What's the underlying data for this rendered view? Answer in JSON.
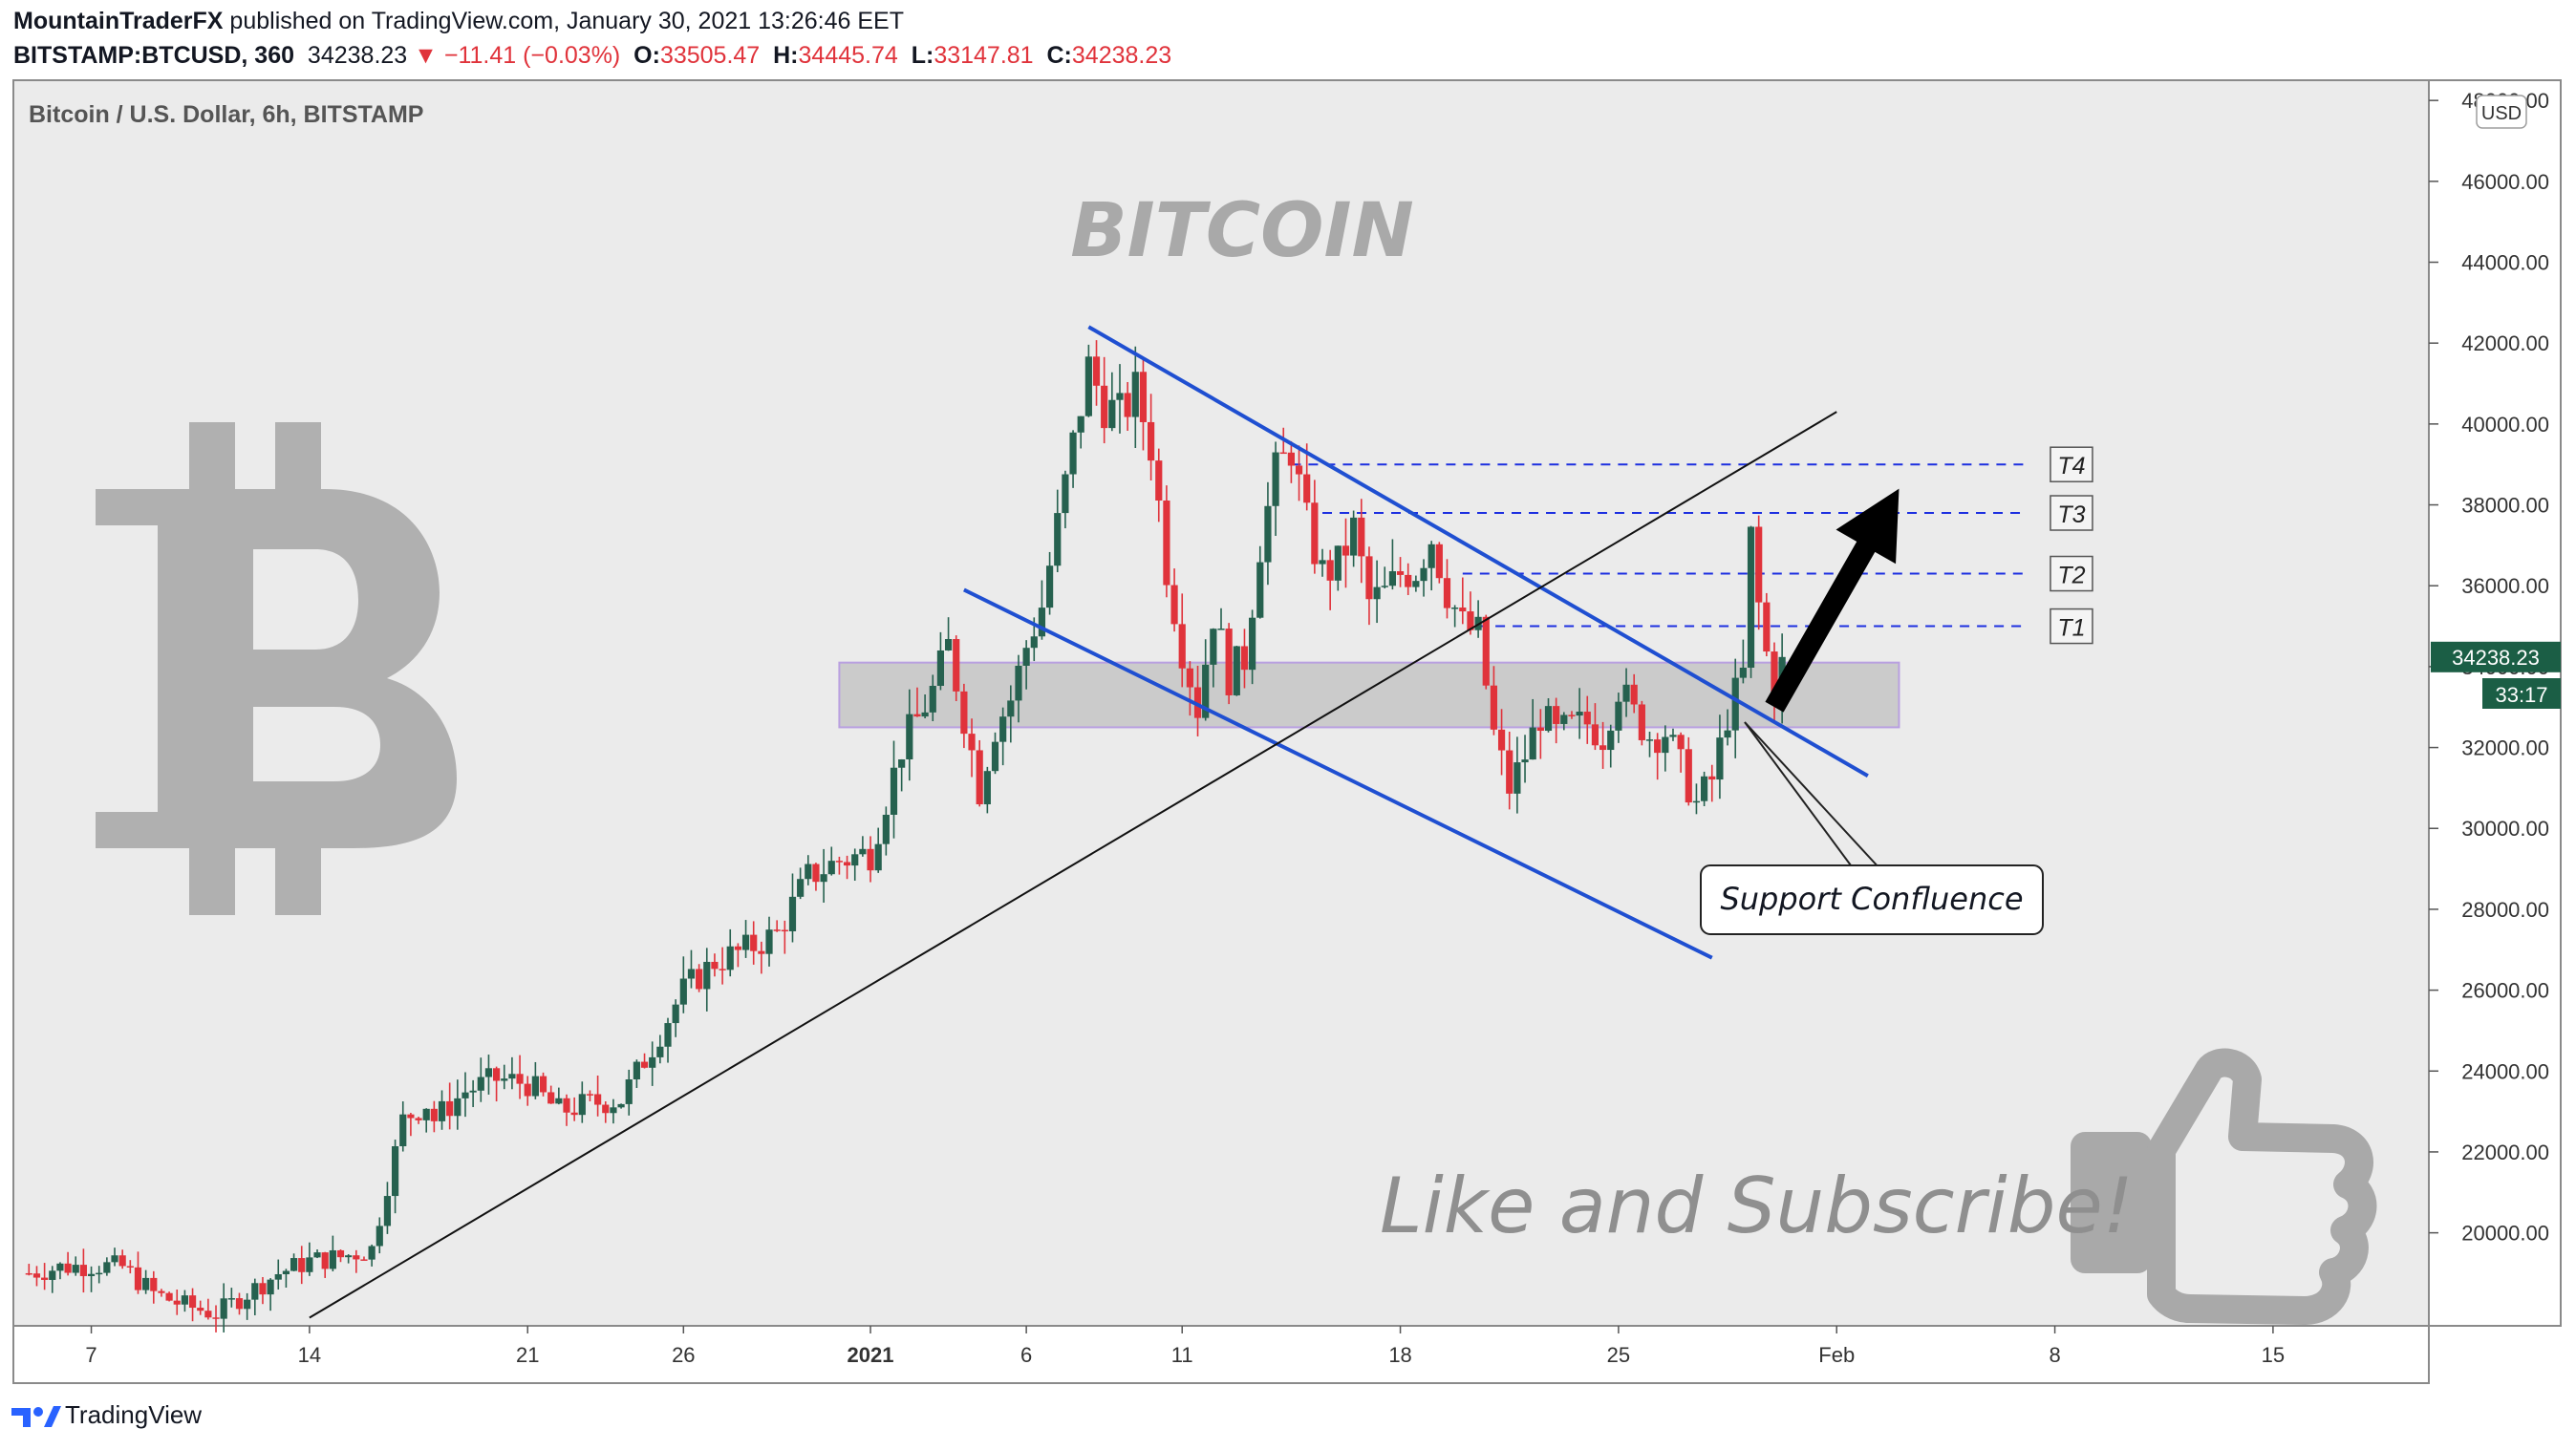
{
  "header": {
    "author": "MountainTraderFX",
    "published": "published on TradingView.com, January 30, 2021 13:26:46 EET",
    "symbol": "BITSTAMP:BTCUSD, 360",
    "last": "34238.23",
    "change": "−11.41 (−0.03%)",
    "o_label": "O:",
    "o_value": "33505.47",
    "h_label": "H:",
    "h_value": "34445.74",
    "l_label": "L:",
    "l_value": "33147.81",
    "c_label": "C:",
    "c_value": "34238.23"
  },
  "legend_title": "Bitcoin / U.S. Dollar, 6h, BITSTAMP",
  "currency": "USD",
  "watermark_title": "BITCOIN",
  "subscribe_text": "Like and Subscribe!",
  "callout": "Support Confluence",
  "price_badge": {
    "price": "34238.23",
    "countdown": "33:17"
  },
  "footer": {
    "brand": "TradingView"
  },
  "colors": {
    "up": "#26614f",
    "down": "#e0333b",
    "channel": "#1f4fd1",
    "target": "#1c2fe0",
    "badge": "#1b5e45",
    "zone": "#c8c8c8",
    "zone_border": "#b9a0e0",
    "background": "#ebebeb"
  },
  "icons": [
    "bitcoin-logo-icon",
    "thumbs-up-icon",
    "tradingview-logo-icon",
    "down-triangle-icon"
  ],
  "chart_data": {
    "type": "candlestick",
    "timeframe": "6h",
    "ylim": [
      17700,
      48500
    ],
    "y_ticks": [
      20000,
      22000,
      24000,
      26000,
      28000,
      30000,
      32000,
      34000,
      36000,
      38000,
      40000,
      42000,
      44000,
      46000,
      48000
    ],
    "y_tick_labels": [
      "20000.00",
      "22000.00",
      "24000.00",
      "26000.00",
      "28000.00",
      "30000.00",
      "32000.00",
      "34000.00",
      "36000.00",
      "38000.00",
      "40000.00",
      "42000.00",
      "44000.00",
      "46000.00",
      "48000.00"
    ],
    "x_range": [
      "2020-12-04T12:00",
      "2021-02-20T00:00"
    ],
    "x_ticks": [
      {
        "date": "2020-12-07",
        "label": "7"
      },
      {
        "date": "2020-12-14",
        "label": "14"
      },
      {
        "date": "2020-12-21",
        "label": "21"
      },
      {
        "date": "2020-12-26",
        "label": "26"
      },
      {
        "date": "2021-01-01",
        "label": "2021"
      },
      {
        "date": "2021-01-06",
        "label": "6"
      },
      {
        "date": "2021-01-11",
        "label": "11"
      },
      {
        "date": "2021-01-18",
        "label": "18"
      },
      {
        "date": "2021-01-25",
        "label": "25"
      },
      {
        "date": "2021-02-01",
        "label": "Feb"
      },
      {
        "date": "2021-02-08",
        "label": "8"
      },
      {
        "date": "2021-02-15",
        "label": "15"
      }
    ],
    "series": [
      {
        "date": "2020-12-05",
        "close": 19000
      },
      {
        "date": "2020-12-06",
        "close": 19150
      },
      {
        "date": "2020-12-07",
        "close": 19200
      },
      {
        "date": "2020-12-08",
        "close": 19150
      },
      {
        "date": "2020-12-09",
        "close": 18500
      },
      {
        "date": "2020-12-10",
        "close": 18200
      },
      {
        "date": "2020-12-11",
        "close": 18000
      },
      {
        "date": "2020-12-12",
        "close": 18500
      },
      {
        "date": "2020-12-13",
        "close": 19000
      },
      {
        "date": "2020-12-14",
        "close": 19300
      },
      {
        "date": "2020-12-15",
        "close": 19400
      },
      {
        "date": "2020-12-16",
        "close": 19600
      },
      {
        "date": "2020-12-17",
        "close": 22800
      },
      {
        "date": "2020-12-17T18:00",
        "close": 23200
      },
      {
        "date": "2020-12-18",
        "close": 22800
      },
      {
        "date": "2020-12-19",
        "close": 23500
      },
      {
        "date": "2020-12-20",
        "close": 23800
      },
      {
        "date": "2020-12-21",
        "close": 23700
      },
      {
        "date": "2020-12-22",
        "close": 23000
      },
      {
        "date": "2020-12-23",
        "close": 23200
      },
      {
        "date": "2020-12-24",
        "close": 23300
      },
      {
        "date": "2020-12-25",
        "close": 24600
      },
      {
        "date": "2020-12-26",
        "close": 26000
      },
      {
        "date": "2020-12-27",
        "close": 26700
      },
      {
        "date": "2020-12-28",
        "close": 27000
      },
      {
        "date": "2020-12-29",
        "close": 27400
      },
      {
        "date": "2020-12-30",
        "close": 28800
      },
      {
        "date": "2020-12-31",
        "close": 29200
      },
      {
        "date": "2021-01-01",
        "close": 29400
      },
      {
        "date": "2021-01-02",
        "close": 32000
      },
      {
        "date": "2021-01-03",
        "close": 33400
      },
      {
        "date": "2021-01-03T12:00",
        "close": 34500
      },
      {
        "date": "2021-01-04",
        "close": 32800
      },
      {
        "date": "2021-01-04T12:00",
        "close": 31000
      },
      {
        "date": "2021-01-05",
        "close": 32500
      },
      {
        "date": "2021-01-05T12:00",
        "close": 33200
      },
      {
        "date": "2021-01-06",
        "close": 34500
      },
      {
        "date": "2021-01-06T12:00",
        "close": 35500
      },
      {
        "date": "2021-01-07",
        "close": 37500
      },
      {
        "date": "2021-01-07T12:00",
        "close": 39500
      },
      {
        "date": "2021-01-08",
        "close": 41400
      },
      {
        "date": "2021-01-08T12:00",
        "close": 40500
      },
      {
        "date": "2021-01-09",
        "close": 40200
      },
      {
        "date": "2021-01-09T12:00",
        "close": 40800
      },
      {
        "date": "2021-01-10",
        "close": 39500
      },
      {
        "date": "2021-01-10T12:00",
        "close": 36500
      },
      {
        "date": "2021-01-11",
        "close": 34500
      },
      {
        "date": "2021-01-11T12:00",
        "close": 33000
      },
      {
        "date": "2021-01-12",
        "close": 35300
      },
      {
        "date": "2021-01-12T12:00",
        "close": 33800
      },
      {
        "date": "2021-01-13",
        "close": 34200
      },
      {
        "date": "2021-01-13T12:00",
        "close": 37000
      },
      {
        "date": "2021-01-14",
        "close": 38800
      },
      {
        "date": "2021-01-14T12:00",
        "close": 39400
      },
      {
        "date": "2021-01-15",
        "close": 37500
      },
      {
        "date": "2021-01-15T12:00",
        "close": 36300
      },
      {
        "date": "2021-01-16",
        "close": 36500
      },
      {
        "date": "2021-01-16T12:00",
        "close": 37400
      },
      {
        "date": "2021-01-17",
        "close": 35600
      },
      {
        "date": "2021-01-17T12:00",
        "close": 35800
      },
      {
        "date": "2021-01-18",
        "close": 36300
      },
      {
        "date": "2021-01-18T12:00",
        "close": 36400
      },
      {
        "date": "2021-01-19",
        "close": 37200
      },
      {
        "date": "2021-01-19T12:00",
        "close": 35900
      },
      {
        "date": "2021-01-20",
        "close": 35000
      },
      {
        "date": "2021-01-20T12:00",
        "close": 34800
      },
      {
        "date": "2021-01-21",
        "close": 32300
      },
      {
        "date": "2021-01-21T12:00",
        "close": 31000
      },
      {
        "date": "2021-01-22",
        "close": 31800
      },
      {
        "date": "2021-01-22T12:00",
        "close": 32800
      },
      {
        "date": "2021-01-23",
        "close": 32300
      },
      {
        "date": "2021-01-23T12:00",
        "close": 32500
      },
      {
        "date": "2021-01-24",
        "close": 32600
      },
      {
        "date": "2021-01-24T12:00",
        "close": 32300
      },
      {
        "date": "2021-01-25",
        "close": 33500
      },
      {
        "date": "2021-01-25T12:00",
        "close": 32800
      },
      {
        "date": "2021-01-26",
        "close": 32300
      },
      {
        "date": "2021-01-26T12:00",
        "close": 32400
      },
      {
        "date": "2021-01-27",
        "close": 31500
      },
      {
        "date": "2021-01-27T12:00",
        "close": 30600
      },
      {
        "date": "2021-01-28",
        "close": 31200
      },
      {
        "date": "2021-01-28T12:00",
        "close": 32800
      },
      {
        "date": "2021-01-29",
        "close": 33800
      },
      {
        "date": "2021-01-29T06:00",
        "close": 37200
      },
      {
        "date": "2021-01-29T12:00",
        "close": 35500
      },
      {
        "date": "2021-01-29T18:00",
        "close": 34300
      },
      {
        "date": "2021-01-30",
        "close": 33500
      },
      {
        "date": "2021-01-30T06:00",
        "close": 34238.23
      }
    ],
    "annotations": {
      "targets": [
        {
          "label": "T1",
          "price": 35000
        },
        {
          "label": "T2",
          "price": 36300
        },
        {
          "label": "T3",
          "price": 37800
        },
        {
          "label": "T4",
          "price": 39000
        }
      ],
      "support_zone": {
        "from": "2020-12-31",
        "to": "2021-02-03",
        "low": 32500,
        "high": 34100
      },
      "channel_upper": [
        {
          "date": "2021-01-08",
          "price": 42400
        },
        {
          "date": "2021-02-02",
          "price": 31300
        }
      ],
      "channel_lower": [
        {
          "date": "2021-01-04",
          "price": 35900
        },
        {
          "date": "2021-01-28",
          "price": 26800
        }
      ],
      "trendline": [
        {
          "date": "2020-12-14",
          "price": 17900
        },
        {
          "date": "2021-02-01",
          "price": 40300
        }
      ],
      "arrow": [
        {
          "date": "2021-01-30",
          "price": 33000
        },
        {
          "date": "2021-02-03",
          "price": 38400
        }
      ]
    }
  }
}
